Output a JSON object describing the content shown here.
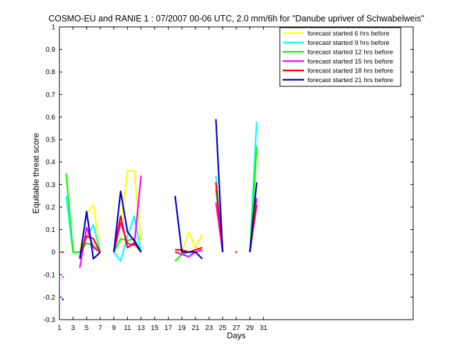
{
  "chart_data": {
    "type": "line",
    "title": "COSMO-EU and RANIE 1 : 07/2007 00-06 UTC, 2.0 mm/6h for \"Danube upriver of Schwabelweis\"",
    "xlabel": "Days",
    "ylabel": "Equitable threat score",
    "xlim": [
      1,
      53
    ],
    "ylim": [
      -0.3,
      1
    ],
    "xticks": [
      1,
      3,
      5,
      7,
      9,
      11,
      13,
      15,
      17,
      19,
      21,
      23,
      25,
      27,
      29,
      31
    ],
    "yticks": [
      -0.3,
      -0.2,
      -0.1,
      0,
      0.1,
      0.2,
      0.3,
      0.4,
      0.5,
      0.6,
      0.7,
      0.8,
      0.9,
      1
    ],
    "ytick_labels": [
      "-0.3",
      "-0.2",
      "-0.1",
      "0",
      "0.1",
      "0.2",
      "0.3",
      "0.4",
      "0.5",
      "0.6",
      "0.7",
      "0.8",
      "0.9",
      "1"
    ],
    "legend_position": "top-right",
    "grid": false,
    "series": [
      {
        "name": "forecast started 6 hrs before",
        "color": "#ffff00",
        "segments": [
          [
            [
              2,
              0.34
            ],
            [
              3,
              0.0
            ],
            [
              4,
              0.0
            ],
            [
              5,
              0.17
            ],
            [
              6,
              0.21
            ],
            [
              7,
              0.0
            ]
          ],
          [
            [
              9,
              0.0
            ],
            [
              10,
              0.12
            ],
            [
              11,
              0.36
            ],
            [
              12,
              0.36
            ],
            [
              13,
              0.05
            ]
          ],
          [
            [
              18,
              0.0
            ],
            [
              19,
              0.0
            ],
            [
              20,
              0.09
            ],
            [
              21,
              0.02
            ],
            [
              22,
              0.08
            ]
          ],
          [
            [
              24,
              0.31
            ],
            [
              25,
              0.0
            ]
          ],
          [
            [
              29,
              0.0
            ],
            [
              30,
              0.44
            ]
          ]
        ],
        "points": []
      },
      {
        "name": "forecast started 9 hrs before",
        "color": "#00ffff",
        "segments": [
          [
            [
              2,
              0.25
            ],
            [
              3,
              0.0
            ],
            [
              4,
              0.0
            ],
            [
              5,
              0.07
            ],
            [
              6,
              0.12
            ],
            [
              7,
              0.0
            ]
          ],
          [
            [
              9,
              0.0
            ],
            [
              10,
              -0.04
            ],
            [
              11,
              0.07
            ],
            [
              12,
              0.16
            ],
            [
              13,
              0.0
            ]
          ],
          [
            [
              18,
              0.0
            ],
            [
              19,
              -0.01
            ],
            [
              20,
              0.0
            ],
            [
              21,
              0.0
            ]
          ],
          [
            [
              24,
              0.34
            ],
            [
              25,
              0.0
            ]
          ],
          [
            [
              29,
              0.0
            ],
            [
              30,
              0.58
            ]
          ]
        ],
        "points": []
      },
      {
        "name": "forecast started 12 hrs before",
        "color": "#00ff00",
        "segments": [
          [
            [
              2,
              0.35
            ],
            [
              3,
              0.0
            ],
            [
              4,
              0.0
            ],
            [
              5,
              0.04
            ],
            [
              6,
              0.03
            ],
            [
              7,
              0.0
            ]
          ],
          [
            [
              9,
              0.0
            ],
            [
              10,
              0.06
            ],
            [
              11,
              0.05
            ],
            [
              12,
              0.06
            ],
            [
              13,
              0.0
            ]
          ],
          [
            [
              18,
              -0.04
            ],
            [
              19,
              -0.01
            ],
            [
              20,
              0.0
            ],
            [
              21,
              0.01
            ]
          ],
          [
            [
              24,
              0.28
            ],
            [
              25,
              0.0
            ]
          ],
          [
            [
              29,
              0.0
            ],
            [
              30,
              0.47
            ]
          ]
        ],
        "points": []
      },
      {
        "name": "forecast started 15 hrs before",
        "color": "#ff00ff",
        "segments": [
          [
            [
              4,
              -0.07
            ],
            [
              5,
              0.11
            ],
            [
              6,
              0.02
            ],
            [
              7,
              0.0
            ]
          ],
          [
            [
              9,
              0.0
            ],
            [
              10,
              0.13
            ],
            [
              11,
              0.04
            ],
            [
              12,
              0.03
            ],
            [
              13,
              0.34
            ]
          ],
          [
            [
              18,
              0.0
            ],
            [
              19,
              -0.01
            ],
            [
              20,
              -0.02
            ],
            [
              21,
              0.0
            ],
            [
              22,
              0.01
            ]
          ],
          [
            [
              24,
              0.22
            ],
            [
              25,
              0.0
            ]
          ],
          [
            [
              29,
              0.0
            ],
            [
              30,
              0.24
            ]
          ]
        ],
        "points": [
          [
            1.5,
            -0.11
          ],
          [
            27,
            0.0
          ]
        ]
      },
      {
        "name": "forecast started 18 hrs before",
        "color": "#ff0000",
        "segments": [
          [
            [
              4,
              -0.02
            ],
            [
              5,
              0.07
            ],
            [
              6,
              0.06
            ],
            [
              7,
              0.0
            ]
          ],
          [
            [
              9,
              0.0
            ],
            [
              10,
              0.16
            ],
            [
              11,
              0.02
            ],
            [
              12,
              0.04
            ],
            [
              13,
              0.0
            ]
          ],
          [
            [
              18,
              0.01
            ],
            [
              19,
              0.01
            ],
            [
              20,
              0.0
            ],
            [
              21,
              0.01
            ],
            [
              22,
              0.02
            ]
          ],
          [
            [
              24,
              0.31
            ],
            [
              25,
              0.0
            ]
          ],
          [
            [
              29,
              0.0
            ],
            [
              30,
              0.21
            ]
          ]
        ],
        "points": [
          [
            1.5,
            0.0
          ],
          [
            27,
            0.0
          ]
        ]
      },
      {
        "name": "forecast started 21 hrs before",
        "color": "#0000cc",
        "segments": [
          [
            [
              4,
              -0.03
            ],
            [
              5,
              0.18
            ],
            [
              6,
              -0.03
            ],
            [
              7,
              0.0
            ]
          ],
          [
            [
              9,
              0.0
            ],
            [
              10,
              0.27
            ],
            [
              11,
              0.09
            ],
            [
              12,
              0.05
            ],
            [
              13,
              0.0
            ]
          ],
          [
            [
              18,
              0.25
            ],
            [
              19,
              0.0
            ],
            [
              20,
              0.0
            ],
            [
              21,
              0.0
            ],
            [
              22,
              -0.03
            ]
          ],
          [
            [
              24,
              0.59
            ],
            [
              25,
              0.0
            ]
          ],
          [
            [
              29,
              0.0
            ],
            [
              30,
              0.31
            ]
          ]
        ],
        "points": [
          [
            1.5,
            -0.21
          ]
        ]
      }
    ]
  }
}
